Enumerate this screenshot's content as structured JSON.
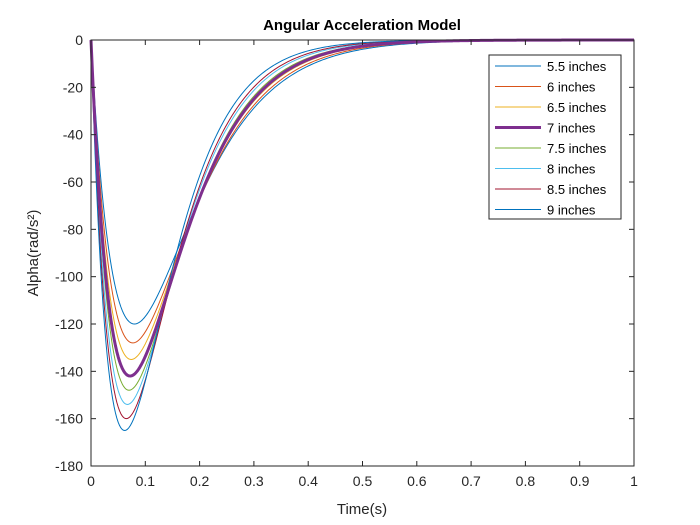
{
  "chart_data": {
    "type": "line",
    "title": "Angular Acceleration Model",
    "xlabel": "Time(s)",
    "ylabel": "Alpha(rad/s²)",
    "xlim": [
      0,
      1
    ],
    "ylim": [
      -180,
      0
    ],
    "x_ticks": [
      "0",
      "0.1",
      "0.2",
      "0.3",
      "0.4",
      "0.5",
      "0.6",
      "0.7",
      "0.8",
      "0.9",
      "1"
    ],
    "y_ticks": [
      "0",
      "-20",
      "-40",
      "-60",
      "-80",
      "-100",
      "-120",
      "-140",
      "-160",
      "-180"
    ],
    "grid": false,
    "legend_position": "top-right",
    "series": [
      {
        "name": "5.5 inches",
        "color": "#0072BD",
        "width": 1,
        "min_value": -120,
        "min_time": 0.08
      },
      {
        "name": "6 inches",
        "color": "#D95319",
        "width": 1,
        "min_value": -128,
        "min_time": 0.077
      },
      {
        "name": "6.5 inches",
        "color": "#EDB120",
        "width": 1,
        "min_value": -135,
        "min_time": 0.074
      },
      {
        "name": "7 inches",
        "color": "#7E2F8E",
        "width": 3,
        "min_value": -142,
        "min_time": 0.072
      },
      {
        "name": "7.5 inches",
        "color": "#77AC30",
        "width": 1,
        "min_value": -148,
        "min_time": 0.07
      },
      {
        "name": "8 inches",
        "color": "#4DBEEE",
        "width": 1,
        "min_value": -154,
        "min_time": 0.067
      },
      {
        "name": "8.5 inches",
        "color": "#A2142F",
        "width": 1,
        "min_value": -160,
        "min_time": 0.065
      },
      {
        "name": "9 inches",
        "color": "#0072BD",
        "width": 1,
        "min_value": -165,
        "min_time": 0.062
      }
    ]
  }
}
